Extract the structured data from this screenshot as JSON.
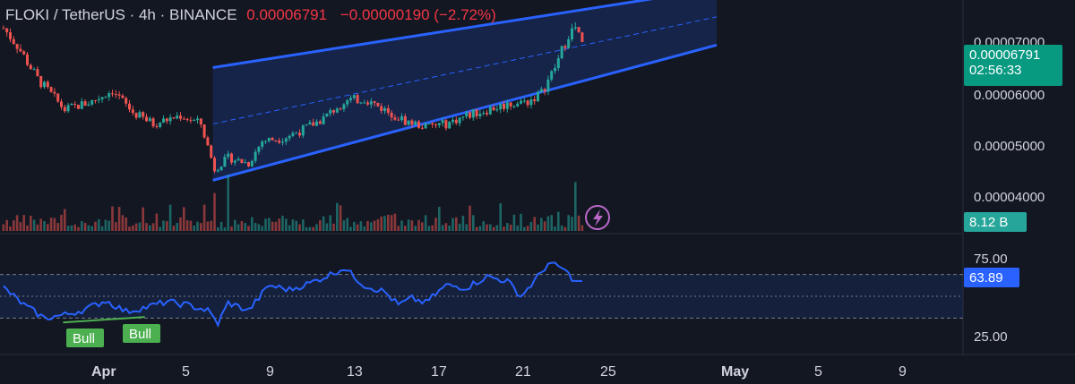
{
  "header": {
    "symbol": "FLOKI / TetherUS · 4h · BINANCE",
    "price": "0.00006791",
    "change": "−0.00000190 (−2.72%)"
  },
  "price_axis": {
    "ticks": [
      "0.00007000",
      "0.00006000",
      "0.00005000",
      "0.00004000"
    ],
    "last_price_label": "0.00006791",
    "countdown": "02:56:33"
  },
  "volume": {
    "label": "8.12 B"
  },
  "rsi": {
    "ticks": [
      "75.00",
      "25.00"
    ],
    "value_label": "63.89",
    "bull_labels": [
      "Bull",
      "Bull"
    ]
  },
  "time_axis": [
    "Apr",
    "5",
    "9",
    "13",
    "17",
    "21",
    "25",
    "May",
    "5",
    "9"
  ],
  "colors": {
    "background": "#131722",
    "up": "#26a69a",
    "down": "#ef5350",
    "channel": "#2962ff",
    "rsi_line": "#2962ff",
    "bull": "#4caf50",
    "alert_icon": "#9c27b0"
  },
  "icons": {
    "alert": "lightning-icon"
  },
  "chart_data": {
    "type": "candlestick",
    "timeframe": "4h",
    "price_range": [
      3.6e-05,
      7.7e-05
    ],
    "close_anchors": [
      [
        0,
        7.2e-05
      ],
      [
        4,
        6.9e-05
      ],
      [
        10,
        6.3e-05
      ],
      [
        18,
        5.75e-05
      ],
      [
        26,
        5.9e-05
      ],
      [
        32,
        6.1e-05
      ],
      [
        38,
        5.7e-05
      ],
      [
        44,
        5.5e-05
      ],
      [
        52,
        5.65e-05
      ],
      [
        58,
        5.5e-05
      ],
      [
        62,
        4.7e-05
      ],
      [
        66,
        4.9e-05
      ],
      [
        72,
        4.8e-05
      ],
      [
        76,
        5.2e-05
      ],
      [
        82,
        5.25e-05
      ],
      [
        88,
        5.4e-05
      ],
      [
        94,
        5.6e-05
      ],
      [
        100,
        5.9e-05
      ],
      [
        106,
        5.95e-05
      ],
      [
        112,
        5.75e-05
      ],
      [
        118,
        5.55e-05
      ],
      [
        124,
        5.45e-05
      ],
      [
        130,
        5.5e-05
      ],
      [
        136,
        5.65e-05
      ],
      [
        142,
        5.75e-05
      ],
      [
        148,
        5.85e-05
      ],
      [
        154,
        5.9e-05
      ],
      [
        158,
        6.05e-05
      ],
      [
        162,
        6.5e-05
      ],
      [
        166,
        7.1e-05
      ],
      [
        168,
        7.2e-05
      ],
      [
        170,
        6.9e-05
      ]
    ],
    "channel": {
      "lower": [
        [
          62,
          4.5e-05
        ],
        [
          210,
          6.9e-05
        ]
      ],
      "upper": [
        [
          62,
          6.5e-05
        ],
        [
          210,
          7.9e-05
        ]
      ]
    },
    "rsi": {
      "range": [
        0,
        100
      ],
      "levels": [
        70,
        50,
        30
      ],
      "anchors": [
        [
          0,
          58
        ],
        [
          6,
          42
        ],
        [
          12,
          30
        ],
        [
          18,
          33
        ],
        [
          24,
          38
        ],
        [
          30,
          46
        ],
        [
          36,
          36
        ],
        [
          42,
          40
        ],
        [
          48,
          45
        ],
        [
          54,
          42
        ],
        [
          60,
          37
        ],
        [
          63,
          25
        ],
        [
          66,
          44
        ],
        [
          72,
          37
        ],
        [
          78,
          60
        ],
        [
          84,
          56
        ],
        [
          90,
          62
        ],
        [
          96,
          70
        ],
        [
          100,
          76
        ],
        [
          106,
          60
        ],
        [
          112,
          54
        ],
        [
          116,
          42
        ],
        [
          120,
          48
        ],
        [
          124,
          44
        ],
        [
          130,
          60
        ],
        [
          136,
          58
        ],
        [
          142,
          68
        ],
        [
          148,
          64
        ],
        [
          152,
          50
        ],
        [
          156,
          64
        ],
        [
          160,
          80
        ],
        [
          164,
          76
        ],
        [
          168,
          64
        ],
        [
          170,
          63.89
        ]
      ]
    }
  }
}
